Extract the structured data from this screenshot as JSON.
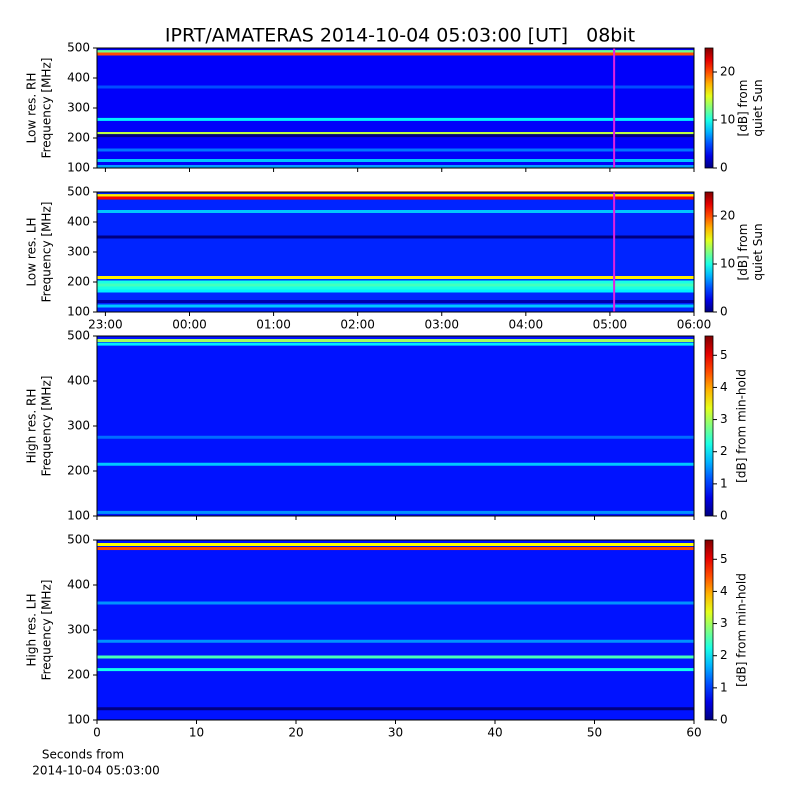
{
  "title": "IPRT/AMATERAS 2014-10-04 05:03:00 [UT]   08bit",
  "chart_data": [
    {
      "type": "heatmap",
      "ylabel": [
        "Low res. RH",
        "Frequency [MHz]"
      ],
      "ylim": [
        100,
        500
      ],
      "yticks": [
        100,
        200,
        300,
        400,
        500
      ],
      "xlim": [
        22.9,
        30
      ],
      "cursor": 29.05,
      "cursor_color": "#e020e0",
      "background": 3,
      "bands": [
        {
          "freq": 488,
          "level": 12
        },
        {
          "freq": 480,
          "level": 20
        },
        {
          "freq": 370,
          "level": 5
        },
        {
          "freq": 262,
          "level": 9
        },
        {
          "freq": 215,
          "level": 14
        },
        {
          "freq": 208,
          "level": 0
        },
        {
          "freq": 160,
          "level": 6
        },
        {
          "freq": 125,
          "level": 8
        },
        {
          "freq": 105,
          "level": 7
        }
      ],
      "colorbar": {
        "label": [
          "[dB] from",
          "quiet Sun"
        ],
        "lim": [
          0,
          25
        ],
        "ticks": [
          0,
          10,
          20
        ]
      }
    },
    {
      "type": "heatmap",
      "ylabel": [
        "Low res. LH",
        "Frequency [MHz]"
      ],
      "ylim": [
        100,
        500
      ],
      "yticks": [
        100,
        200,
        300,
        400,
        500
      ],
      "xlim": [
        22.9,
        30
      ],
      "xticks": [
        {
          "value": 23,
          "label": "23:00"
        },
        {
          "value": 24,
          "label": "00:00"
        },
        {
          "value": 25,
          "label": "01:00"
        },
        {
          "value": 26,
          "label": "02:00"
        },
        {
          "value": 27,
          "label": "03:00"
        },
        {
          "value": 28,
          "label": "04:00"
        },
        {
          "value": 29,
          "label": "05:00"
        },
        {
          "value": 30,
          "label": "06:00"
        }
      ],
      "cursor": 29.05,
      "cursor_color": "#e020e0",
      "background": 4,
      "bands": [
        {
          "freq": 488,
          "level": 16
        },
        {
          "freq": 480,
          "level": 22
        },
        {
          "freq": 435,
          "level": 8
        },
        {
          "freq": 350,
          "level": 0
        },
        {
          "freq": 215,
          "level": 16
        },
        {
          "freq": 200,
          "level": 10
        },
        {
          "freq": 190,
          "level": 11
        },
        {
          "freq": 180,
          "level": 10
        },
        {
          "freq": 170,
          "level": 9
        },
        {
          "freq": 135,
          "level": 1
        },
        {
          "freq": 120,
          "level": 8
        }
      ],
      "colorbar": {
        "label": [
          "[dB] from",
          "quiet Sun"
        ],
        "lim": [
          0,
          25
        ],
        "ticks": [
          0,
          10,
          20
        ]
      }
    },
    {
      "type": "heatmap",
      "ylabel": [
        "High res. RH",
        "Frequency [MHz]"
      ],
      "ylim": [
        100,
        500
      ],
      "yticks": [
        100,
        200,
        300,
        400,
        500
      ],
      "xlim": [
        0,
        60
      ],
      "background": 0.8,
      "bands": [
        {
          "freq": 490,
          "level": 3
        },
        {
          "freq": 482,
          "level": 2
        },
        {
          "freq": 275,
          "level": 1.3
        },
        {
          "freq": 215,
          "level": 1.8
        },
        {
          "freq": 108,
          "level": 1.5
        }
      ],
      "colorbar": {
        "label": [
          "[dB] from min-hold"
        ],
        "lim": [
          0,
          5.6
        ],
        "ticks": [
          0,
          1,
          2,
          3,
          4,
          5
        ]
      }
    },
    {
      "type": "heatmap",
      "ylabel": [
        "High res. LH",
        "Frequency [MHz]"
      ],
      "ylim": [
        100,
        500
      ],
      "yticks": [
        100,
        200,
        300,
        400,
        500
      ],
      "xlim": [
        0,
        60
      ],
      "xticks": [
        0,
        10,
        20,
        30,
        40,
        50,
        60
      ],
      "xlabel": [
        "Seconds from",
        "2014-10-04 05:03:00"
      ],
      "background": 0.8,
      "bands": [
        {
          "freq": 490,
          "level": 3.5
        },
        {
          "freq": 481,
          "level": 4.5
        },
        {
          "freq": 360,
          "level": 1.5
        },
        {
          "freq": 275,
          "level": 1.5
        },
        {
          "freq": 240,
          "level": 2.5
        },
        {
          "freq": 212,
          "level": 2.2
        },
        {
          "freq": 125,
          "level": 0
        }
      ],
      "colorbar": {
        "label": [
          "[dB] from min-hold"
        ],
        "lim": [
          0,
          5.6
        ],
        "ticks": [
          0,
          1,
          2,
          3,
          4,
          5
        ]
      }
    }
  ]
}
